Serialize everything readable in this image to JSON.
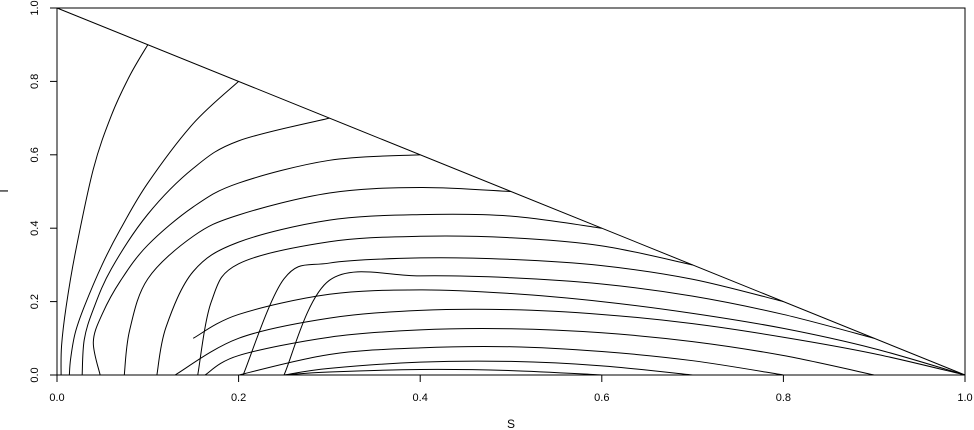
{
  "chart_data": {
    "type": "line",
    "title": "",
    "xlabel": "S",
    "ylabel": "I",
    "xlim": [
      0,
      1
    ],
    "ylim": [
      0,
      1
    ],
    "x_ticks": [
      "0.0",
      "0.2",
      "0.4",
      "0.6",
      "0.8",
      "1.0"
    ],
    "y_ticks": [
      "0.0",
      "0.2",
      "0.4",
      "0.6",
      "0.8",
      "1.0"
    ],
    "grid": false,
    "legend": "none",
    "line_color": "#000000",
    "boundary_line": {
      "x": [
        0,
        1
      ],
      "y": [
        1,
        0
      ]
    },
    "series": [
      {
        "x": [
          0.1,
          0.08,
          0.06,
          0.04,
          0.02,
          0.01,
          0.005,
          0.0045
        ],
        "y": [
          0.9,
          0.815,
          0.708,
          0.561,
          0.331,
          0.185,
          0.079,
          0.0
        ]
      },
      {
        "x": [
          0.2,
          0.15,
          0.1,
          0.07,
          0.05,
          0.03,
          0.02,
          0.015,
          0.0136
        ],
        "y": [
          0.8,
          0.685,
          0.523,
          0.398,
          0.302,
          0.186,
          0.114,
          0.044,
          0.0
        ]
      },
      {
        "x": [
          0.3,
          0.2,
          0.15,
          0.1,
          0.06,
          0.04,
          0.03,
          0.0277
        ],
        "y": [
          0.7,
          0.638,
          0.563,
          0.438,
          0.29,
          0.179,
          0.096,
          0.0
        ]
      },
      {
        "x": [
          0.4,
          0.3,
          0.2,
          0.15,
          0.1,
          0.07,
          0.05,
          0.04,
          0.0475
        ],
        "y": [
          0.6,
          0.585,
          0.523,
          0.458,
          0.354,
          0.257,
          0.167,
          0.09,
          0.0
        ]
      },
      {
        "x": [
          0.5,
          0.4,
          0.3,
          0.2,
          0.15,
          0.1,
          0.08,
          0.0741
        ],
        "y": [
          0.5,
          0.511,
          0.496,
          0.436,
          0.378,
          0.262,
          0.122,
          0.0
        ]
      },
      {
        "x": [
          0.6,
          0.5,
          0.4,
          0.3,
          0.2,
          0.15,
          0.12,
          0.11
        ],
        "y": [
          0.4,
          0.433,
          0.437,
          0.422,
          0.362,
          0.282,
          0.13,
          0.0
        ]
      },
      {
        "x": [
          0.7,
          0.6,
          0.5,
          0.4,
          0.3,
          0.2,
          0.17,
          0.155
        ],
        "y": [
          0.3,
          0.352,
          0.374,
          0.378,
          0.363,
          0.303,
          0.2,
          0.0
        ]
      },
      {
        "x": [
          0.8,
          0.7,
          0.6,
          0.5,
          0.4,
          0.3,
          0.25,
          0.205
        ],
        "y": [
          0.2,
          0.261,
          0.298,
          0.315,
          0.319,
          0.305,
          0.262,
          0.0
        ]
      },
      {
        "x": [
          0.9,
          0.8,
          0.7,
          0.6,
          0.5,
          0.4,
          0.3,
          0.25
        ],
        "y": [
          0.1,
          0.165,
          0.215,
          0.248,
          0.265,
          0.27,
          0.258,
          0.0
        ]
      },
      {
        "x": [
          1.0,
          0.9,
          0.8,
          0.7,
          0.6,
          0.5,
          0.4,
          0.3,
          0.2,
          0.15
        ],
        "y": [
          0.0,
          0.072,
          0.127,
          0.168,
          0.2,
          0.222,
          0.232,
          0.22,
          0.165,
          0.1
        ]
      },
      {
        "x": [
          1.0,
          0.9,
          0.8,
          0.7,
          0.6,
          0.5,
          0.4,
          0.3,
          0.2,
          0.13
        ],
        "y": [
          0.0,
          0.058,
          0.103,
          0.14,
          0.165,
          0.178,
          0.176,
          0.155,
          0.1,
          0.0
        ]
      },
      {
        "x": [
          0.9,
          0.8,
          0.7,
          0.6,
          0.5,
          0.4,
          0.3,
          0.2,
          0.163
        ],
        "y": [
          0.0,
          0.053,
          0.091,
          0.115,
          0.126,
          0.123,
          0.103,
          0.053,
          0.0
        ]
      },
      {
        "x": [
          0.8,
          0.7,
          0.6,
          0.5,
          0.4,
          0.3,
          0.2
        ],
        "y": [
          0.0,
          0.039,
          0.064,
          0.077,
          0.074,
          0.056,
          0.0
        ]
      },
      {
        "x": [
          0.7,
          0.6,
          0.5,
          0.4,
          0.3,
          0.25
        ],
        "y": [
          0.0,
          0.025,
          0.037,
          0.035,
          0.018,
          0.0
        ]
      },
      {
        "x": [
          0.6,
          0.5,
          0.4,
          0.3,
          0.25
        ],
        "y": [
          0.0,
          0.012,
          0.015,
          0.008,
          0.0
        ]
      }
    ]
  }
}
